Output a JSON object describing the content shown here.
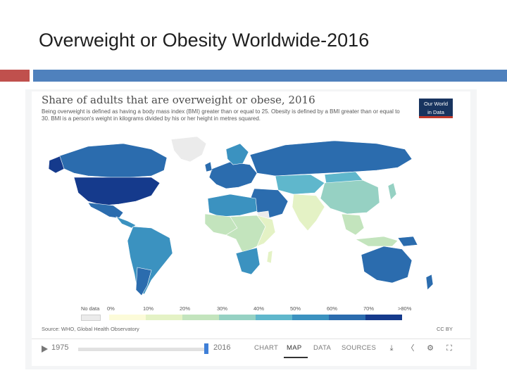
{
  "slide": {
    "title": "Overweight or Obesity Worldwide-2016"
  },
  "chart": {
    "title": "Share of adults that are overweight or obese, 2016",
    "subtitle": "Being overweight is defined as having a body mass index (BMI) greater than or equal to 25. Obesity is defined by a BMI greater than or equal to 30. BMI is a person's weight in kilograms divided by his or her height in metres squared.",
    "logo_text": [
      "Our World",
      "in Data"
    ],
    "source": "Source: WHO, Global Health Observatory",
    "license": "CC BY"
  },
  "legend": {
    "no_data_label": "No data",
    "ticks": [
      "0%",
      "10%",
      "20%",
      "30%",
      "40%",
      "50%",
      "60%",
      "70%",
      ">80%"
    ],
    "colors": [
      "#fcfbd9",
      "#e4f2c5",
      "#c3e4bd",
      "#96d1c3",
      "#5fb7cc",
      "#3b92c0",
      "#2b6cae",
      "#153a8c"
    ],
    "no_data_color": "#ebebeb"
  },
  "timeline": {
    "start_year": "1975",
    "end_year": "2016",
    "selected_year": "2016"
  },
  "tabs": [
    {
      "label": "CHART",
      "active": false
    },
    {
      "label": "MAP",
      "active": true
    },
    {
      "label": "DATA",
      "active": false
    },
    {
      "label": "SOURCES",
      "active": false
    }
  ],
  "icons": {
    "download": "download-icon",
    "share": "share-icon",
    "settings": "gear-icon",
    "fullscreen": "fullscreen-icon"
  }
}
